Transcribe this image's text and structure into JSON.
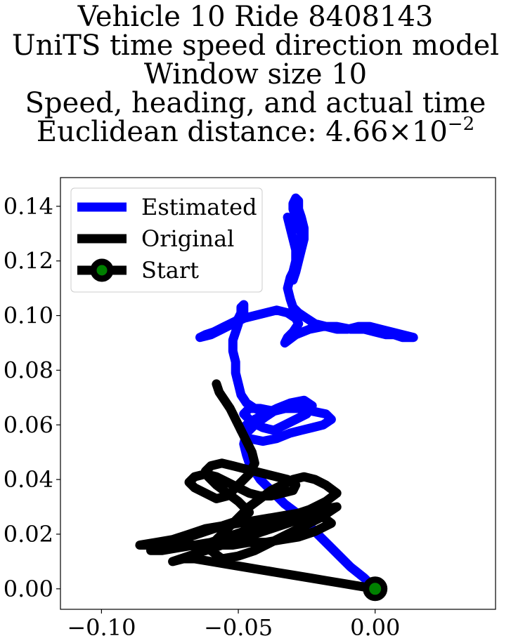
{
  "chart_data": {
    "type": "line",
    "title": {
      "line1": "Vehicle 10 Ride 8408143",
      "line2": "UniTS time speed direction model",
      "line3": "Window size 10",
      "line4": "Speed, heading, and actual time",
      "line5_prefix": "Euclidean distance: 4.66",
      "line5_times": "×",
      "line5_base": "10",
      "line5_exp": "−2"
    },
    "xlabel": "",
    "ylabel": "",
    "xlim": [
      -0.115,
      0.044
    ],
    "ylim": [
      -0.0075,
      0.1505
    ],
    "x_ticks": [
      {
        "value": -0.1,
        "label": "−0.10"
      },
      {
        "value": -0.05,
        "label": "−0.05"
      },
      {
        "value": 0.0,
        "label": "0.00"
      }
    ],
    "y_ticks": [
      {
        "value": 0.0,
        "label": "0.00"
      },
      {
        "value": 0.02,
        "label": "0.02"
      },
      {
        "value": 0.04,
        "label": "0.04"
      },
      {
        "value": 0.06,
        "label": "0.06"
      },
      {
        "value": 0.08,
        "label": "0.08"
      },
      {
        "value": 0.1,
        "label": "0.10"
      },
      {
        "value": 0.12,
        "label": "0.12"
      },
      {
        "value": 0.14,
        "label": "0.14"
      }
    ],
    "grid": false,
    "legend_position": "top-left",
    "colors": {
      "estimated": "#0000ff",
      "original": "#000000",
      "start_marker_fill": "#008000",
      "start_marker_edge": "#000000"
    },
    "series": [
      {
        "name": "Estimated",
        "color": "#0000ff",
        "x": [
          0.0,
          -0.004,
          -0.009,
          -0.013,
          -0.017,
          -0.021,
          -0.025,
          -0.029,
          -0.033,
          -0.036,
          -0.039,
          -0.042,
          -0.044,
          -0.046,
          -0.047,
          -0.048,
          -0.047,
          -0.044,
          -0.04,
          -0.037,
          -0.042,
          -0.046,
          -0.048,
          -0.045,
          -0.041,
          -0.037,
          -0.033,
          -0.029,
          -0.025,
          -0.023,
          -0.026,
          -0.031,
          -0.036,
          -0.04,
          -0.044,
          -0.047,
          -0.049,
          -0.046,
          -0.041,
          -0.036,
          -0.031,
          -0.027,
          -0.023,
          -0.019,
          -0.016,
          -0.018,
          -0.023,
          -0.028,
          -0.033,
          -0.037,
          -0.041,
          -0.044,
          -0.047,
          -0.049,
          -0.05,
          -0.051,
          -0.051,
          -0.052,
          -0.052,
          -0.051,
          -0.05,
          -0.05,
          -0.049,
          -0.049,
          -0.048,
          -0.048,
          -0.051,
          -0.055,
          -0.059,
          -0.062,
          -0.064,
          -0.06,
          -0.056,
          -0.052,
          -0.048,
          -0.044,
          -0.04,
          -0.036,
          -0.032,
          -0.029,
          -0.028,
          -0.03,
          -0.032,
          -0.033,
          -0.029,
          -0.024,
          -0.019,
          -0.014,
          -0.009,
          -0.004,
          0.0,
          0.004,
          0.007,
          0.01,
          0.013,
          0.014,
          0.01,
          0.006,
          0.002,
          -0.002,
          -0.006,
          -0.01,
          -0.014,
          -0.018,
          -0.022,
          -0.025,
          -0.028,
          -0.03,
          -0.031,
          -0.032,
          -0.031,
          -0.029,
          -0.028,
          -0.027,
          -0.027,
          -0.028,
          -0.029,
          -0.03,
          -0.03,
          -0.029,
          -0.028,
          -0.028,
          -0.027,
          -0.026,
          -0.026,
          -0.027,
          -0.028,
          -0.029,
          -0.03,
          -0.03,
          -0.029,
          -0.029,
          -0.03,
          -0.031,
          -0.032
        ],
        "y": [
          0.0,
          0.004,
          0.008,
          0.012,
          0.016,
          0.02,
          0.024,
          0.028,
          0.031,
          0.034,
          0.037,
          0.04,
          0.043,
          0.046,
          0.049,
          0.053,
          0.057,
          0.06,
          0.063,
          0.065,
          0.066,
          0.066,
          0.064,
          0.061,
          0.059,
          0.058,
          0.06,
          0.062,
          0.064,
          0.067,
          0.069,
          0.068,
          0.066,
          0.064,
          0.062,
          0.06,
          0.058,
          0.055,
          0.054,
          0.055,
          0.057,
          0.058,
          0.059,
          0.06,
          0.062,
          0.064,
          0.065,
          0.066,
          0.066,
          0.065,
          0.065,
          0.066,
          0.068,
          0.071,
          0.075,
          0.079,
          0.083,
          0.087,
          0.091,
          0.094,
          0.097,
          0.099,
          0.101,
          0.103,
          0.104,
          0.1,
          0.098,
          0.096,
          0.094,
          0.093,
          0.092,
          0.093,
          0.095,
          0.097,
          0.099,
          0.1,
          0.101,
          0.102,
          0.101,
          0.099,
          0.097,
          0.094,
          0.092,
          0.09,
          0.093,
          0.095,
          0.096,
          0.096,
          0.095,
          0.095,
          0.094,
          0.093,
          0.093,
          0.092,
          0.092,
          0.092,
          0.093,
          0.094,
          0.095,
          0.096,
          0.096,
          0.095,
          0.095,
          0.096,
          0.097,
          0.099,
          0.101,
          0.103,
          0.106,
          0.11,
          0.114,
          0.118,
          0.122,
          0.126,
          0.13,
          0.133,
          0.136,
          0.139,
          0.141,
          0.143,
          0.142,
          0.139,
          0.136,
          0.132,
          0.128,
          0.124,
          0.12,
          0.116,
          0.113,
          0.116,
          0.12,
          0.124,
          0.128,
          0.132,
          0.136
        ]
      },
      {
        "name": "Original",
        "color": "#000000",
        "x": [
          0.0,
          -0.006,
          -0.012,
          -0.018,
          -0.024,
          -0.03,
          -0.036,
          -0.042,
          -0.048,
          -0.054,
          -0.06,
          -0.066,
          -0.07,
          -0.074,
          -0.068,
          -0.062,
          -0.056,
          -0.05,
          -0.044,
          -0.038,
          -0.032,
          -0.026,
          -0.02,
          -0.016,
          -0.022,
          -0.028,
          -0.034,
          -0.04,
          -0.046,
          -0.052,
          -0.058,
          -0.064,
          -0.07,
          -0.076,
          -0.082,
          -0.086,
          -0.08,
          -0.074,
          -0.068,
          -0.062,
          -0.056,
          -0.05,
          -0.044,
          -0.038,
          -0.032,
          -0.026,
          -0.02,
          -0.014,
          -0.02,
          -0.026,
          -0.032,
          -0.038,
          -0.044,
          -0.05,
          -0.056,
          -0.06,
          -0.058,
          -0.054,
          -0.05,
          -0.046,
          -0.042,
          -0.038,
          -0.034,
          -0.03,
          -0.026,
          -0.022,
          -0.018,
          -0.014,
          -0.018,
          -0.024,
          -0.03,
          -0.036,
          -0.042,
          -0.048,
          -0.054,
          -0.06,
          -0.066,
          -0.072,
          -0.078,
          -0.082,
          -0.08,
          -0.074,
          -0.068,
          -0.062,
          -0.056,
          -0.05,
          -0.046,
          -0.05,
          -0.054,
          -0.058,
          -0.061,
          -0.062,
          -0.06,
          -0.056,
          -0.052,
          -0.048,
          -0.044,
          -0.04,
          -0.036,
          -0.032,
          -0.029,
          -0.03,
          -0.034,
          -0.038,
          -0.042,
          -0.046,
          -0.05,
          -0.054,
          -0.058,
          -0.062,
          -0.066,
          -0.068,
          -0.066,
          -0.062,
          -0.058,
          -0.054,
          -0.05,
          -0.046,
          -0.044,
          -0.045,
          -0.047,
          -0.049,
          -0.051,
          -0.053,
          -0.055,
          -0.057,
          -0.058
        ],
        "y": [
          0.0,
          0.001,
          0.002,
          0.003,
          0.004,
          0.005,
          0.006,
          0.007,
          0.008,
          0.009,
          0.01,
          0.011,
          0.011,
          0.01,
          0.012,
          0.014,
          0.016,
          0.018,
          0.02,
          0.022,
          0.024,
          0.026,
          0.027,
          0.024,
          0.021,
          0.019,
          0.018,
          0.017,
          0.017,
          0.016,
          0.016,
          0.016,
          0.016,
          0.016,
          0.016,
          0.016,
          0.017,
          0.018,
          0.02,
          0.022,
          0.023,
          0.024,
          0.025,
          0.026,
          0.027,
          0.028,
          0.029,
          0.03,
          0.026,
          0.023,
          0.02,
          0.017,
          0.014,
          0.012,
          0.011,
          0.014,
          0.018,
          0.022,
          0.026,
          0.03,
          0.033,
          0.036,
          0.038,
          0.04,
          0.041,
          0.04,
          0.038,
          0.035,
          0.032,
          0.029,
          0.027,
          0.025,
          0.023,
          0.021,
          0.019,
          0.017,
          0.016,
          0.015,
          0.014,
          0.014,
          0.015,
          0.017,
          0.019,
          0.021,
          0.023,
          0.025,
          0.028,
          0.032,
          0.035,
          0.038,
          0.041,
          0.043,
          0.045,
          0.046,
          0.045,
          0.044,
          0.043,
          0.042,
          0.041,
          0.04,
          0.038,
          0.036,
          0.035,
          0.034,
          0.034,
          0.035,
          0.037,
          0.039,
          0.041,
          0.042,
          0.041,
          0.039,
          0.037,
          0.035,
          0.033,
          0.034,
          0.038,
          0.042,
          0.046,
          0.05,
          0.054,
          0.058,
          0.062,
          0.066,
          0.069,
          0.072,
          0.075
        ]
      }
    ],
    "start_point": {
      "name": "Start",
      "x": 0.0,
      "y": 0.0
    },
    "legend": [
      {
        "label": "Estimated",
        "kind": "line",
        "color": "#0000ff"
      },
      {
        "label": "Original",
        "kind": "line",
        "color": "#000000"
      },
      {
        "label": "Start",
        "kind": "marker",
        "color": "#000000"
      }
    ]
  }
}
